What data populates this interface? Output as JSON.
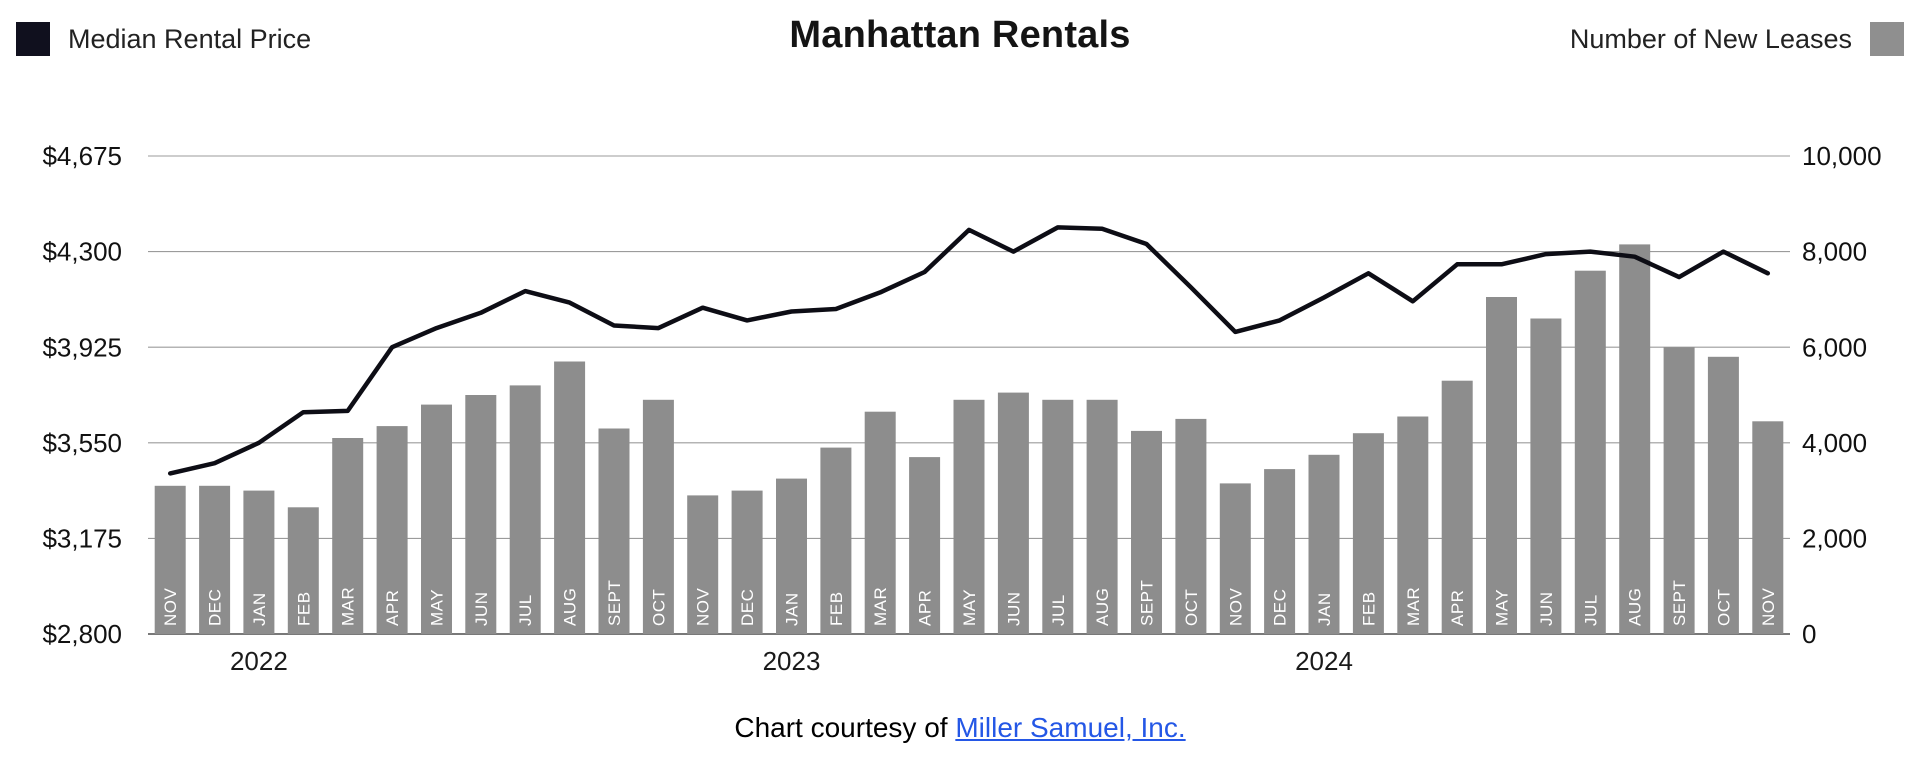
{
  "header": {
    "title": "Manhattan Rentals",
    "legend_left": {
      "label": "Median Rental Price",
      "color": "#10101e"
    },
    "legend_right": {
      "label": "Number of New Leases",
      "color": "#8f8f8f"
    }
  },
  "caption": {
    "prefix": "Chart courtesy of ",
    "link_text": "Miller Samuel, Inc.",
    "link_color": "#2457e6"
  },
  "chart_data": {
    "type": "bar+line",
    "title": "Manhattan Rentals",
    "categories": [
      "NOV",
      "DEC",
      "JAN",
      "FEB",
      "MAR",
      "APR",
      "MAY",
      "JUN",
      "JUL",
      "AUG",
      "SEPT",
      "OCT",
      "NOV",
      "DEC",
      "JAN",
      "FEB",
      "MAR",
      "APR",
      "MAY",
      "JUN",
      "JUL",
      "AUG",
      "SEPT",
      "OCT",
      "NOV",
      "DEC",
      "JAN",
      "FEB",
      "MAR",
      "APR",
      "MAY",
      "JUN",
      "JUL",
      "AUG",
      "SEPT",
      "OCT",
      "NOV"
    ],
    "year_labels": [
      {
        "label": "2022",
        "month_index": 2
      },
      {
        "label": "2023",
        "month_index": 14
      },
      {
        "label": "2024",
        "month_index": 26
      }
    ],
    "series": [
      {
        "name": "Median Rental Price",
        "type": "line",
        "axis": "left",
        "color": "#0d0d15",
        "values": [
          3430,
          3470,
          3550,
          3670,
          3675,
          3925,
          4000,
          4060,
          4145,
          4100,
          4010,
          4000,
          4080,
          4030,
          4065,
          4075,
          4140,
          4220,
          4385,
          4300,
          4395,
          4390,
          4330,
          4160,
          3985,
          4030,
          4120,
          4215,
          4105,
          4250,
          4250,
          4290,
          4300,
          4280,
          4200,
          4300,
          4215
        ]
      },
      {
        "name": "Number of New Leases",
        "type": "bar",
        "axis": "right",
        "color": "#8d8d8d",
        "values": [
          3100,
          3100,
          3000,
          2650,
          4100,
          4350,
          4800,
          5000,
          5200,
          5700,
          4300,
          4900,
          2900,
          3000,
          3250,
          3900,
          4650,
          3700,
          4900,
          5050,
          4900,
          4900,
          4250,
          4500,
          3150,
          3450,
          3750,
          4200,
          4550,
          5300,
          7050,
          6600,
          7600,
          8150,
          6000,
          5800,
          4450
        ]
      }
    ],
    "left_axis": {
      "label": "Median Rental Price",
      "min": 2800,
      "max": 4675,
      "tick_values": [
        2800,
        3175,
        3550,
        3925,
        4300,
        4675
      ],
      "tick_labels": [
        "$2,800",
        "$3,175",
        "$3,550",
        "$3,925",
        "$4,300",
        "$4,675"
      ]
    },
    "right_axis": {
      "label": "Number of New Leases",
      "min": 0,
      "max": 10000,
      "tick_values": [
        0,
        2000,
        4000,
        6000,
        8000,
        10000
      ],
      "tick_labels": [
        "0",
        "2,000",
        "4,000",
        "6,000",
        "8,000",
        "10,000"
      ]
    },
    "grid": true,
    "legend_position": "top"
  }
}
